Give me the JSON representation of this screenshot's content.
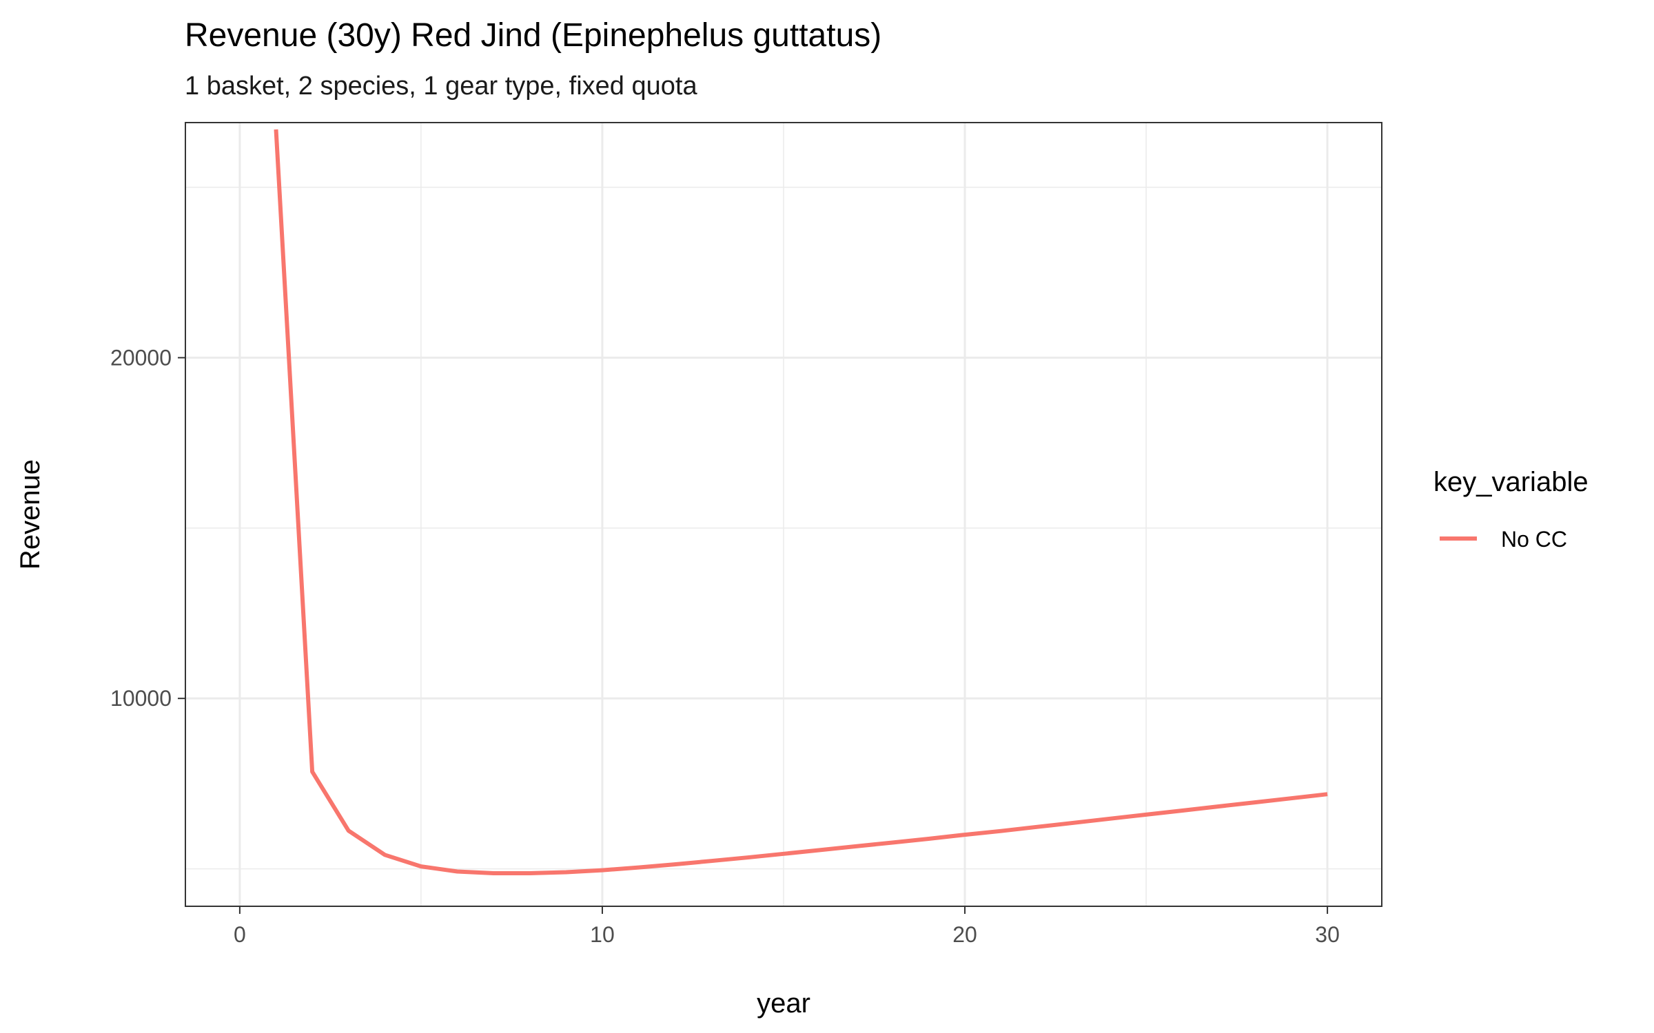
{
  "chart_data": {
    "type": "line",
    "title": "Revenue (30y) Red Jind (Epinephelus guttatus)",
    "subtitle": "1 basket, 2 species, 1 gear type, fixed quota",
    "xlabel": "year",
    "ylabel": "Revenue",
    "xlim": [
      -1.5,
      31.5
    ],
    "ylim": [
      3900,
      26900
    ],
    "x_ticks": [
      0,
      10,
      20,
      30
    ],
    "x_tick_labels": [
      "0",
      "10",
      "20",
      "30"
    ],
    "y_ticks": [
      10000,
      20000
    ],
    "y_tick_labels": [
      "10000",
      "20000"
    ],
    "x_minor_gridlines": [
      5,
      15,
      25
    ],
    "y_minor_gridlines": [
      5000,
      15000,
      25000
    ],
    "grid": true,
    "legend": {
      "title": "key_variable",
      "position": "right"
    },
    "series": [
      {
        "name": "No CC",
        "color": "#F8766D",
        "x": [
          1,
          2,
          3,
          4,
          5,
          6,
          7,
          8,
          9,
          10,
          11,
          12,
          13,
          14,
          15,
          16,
          17,
          18,
          19,
          20,
          21,
          22,
          23,
          24,
          25,
          26,
          27,
          28,
          29,
          30
        ],
        "values": [
          26700,
          7850,
          6120,
          5410,
          5070,
          4920,
          4870,
          4870,
          4900,
          4960,
          5040,
          5130,
          5230,
          5330,
          5440,
          5550,
          5660,
          5770,
          5880,
          6000,
          6110,
          6230,
          6350,
          6470,
          6590,
          6710,
          6830,
          6950,
          7070,
          7190
        ]
      }
    ]
  }
}
